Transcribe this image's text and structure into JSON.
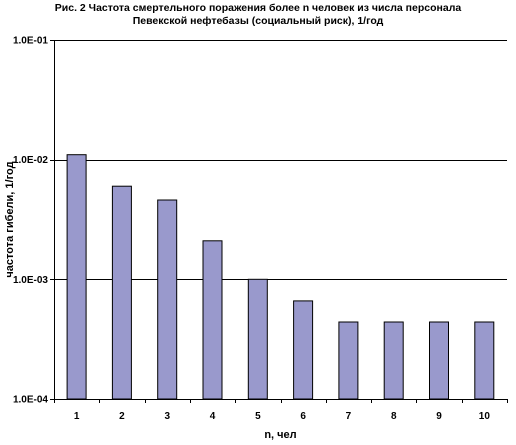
{
  "chart_data": {
    "type": "bar",
    "title_lines": [
      "Рис. 2 Частота смертельного поражения более n человек из числа персонала",
      "Певекской нефтебазы (социальный риск), 1/год"
    ],
    "xlabel": "n, чел",
    "ylabel": "частота гибели, 1/год",
    "y_scale": "log",
    "ylim": [
      0.0001,
      0.1
    ],
    "y_tick_labels": [
      "1.0E-01",
      "1.0E-02",
      "1.0E-03",
      "1.0E-04"
    ],
    "y_tick_values": [
      0.1,
      0.01,
      0.001,
      0.0001
    ],
    "grid": true,
    "categories": [
      "1",
      "2",
      "3",
      "4",
      "5",
      "6",
      "7",
      "8",
      "9",
      "10"
    ],
    "values": [
      0.011,
      0.006,
      0.0046,
      0.0021,
      0.001,
      0.00066,
      0.00044,
      0.00044,
      0.00044,
      0.00044
    ],
    "bar_color": "#9999cc",
    "bar_stroke": "#000000"
  }
}
